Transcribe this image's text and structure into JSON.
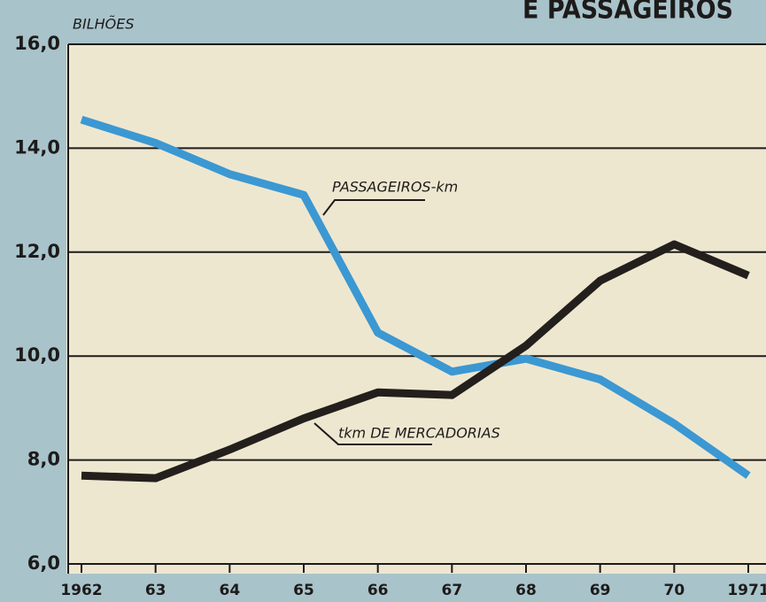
{
  "chart_data": {
    "type": "line",
    "title": "E PASSAGEIROS",
    "y_label": "BILHÕES",
    "categories": [
      "1962",
      "63",
      "64",
      "65",
      "66",
      "67",
      "68",
      "69",
      "70",
      "1971"
    ],
    "series": [
      {
        "name": "PASSAGEIROS-km",
        "color": "#3b98d2",
        "values": [
          14.55,
          14.1,
          13.5,
          13.1,
          10.45,
          9.7,
          9.95,
          9.55,
          8.7,
          7.7
        ]
      },
      {
        "name": "tkm DE MERCADORIAS",
        "color": "#231f1c",
        "values": [
          7.7,
          7.65,
          8.2,
          8.8,
          9.3,
          9.25,
          10.2,
          11.45,
          12.15,
          11.55
        ]
      }
    ],
    "ylim": [
      6,
      16
    ],
    "yticks": [
      {
        "value": 6,
        "label": "6,0"
      },
      {
        "value": 8,
        "label": "8,0"
      },
      {
        "value": 10,
        "label": "10,0"
      },
      {
        "value": 12,
        "label": "12,0"
      },
      {
        "value": 14,
        "label": "14,0"
      },
      {
        "value": 16,
        "label": "16,0"
      }
    ],
    "grid": true
  }
}
